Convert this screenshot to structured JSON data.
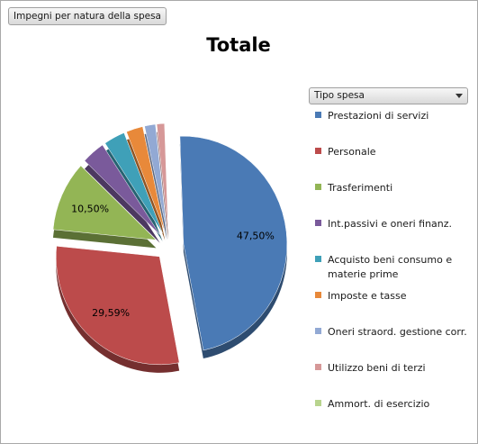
{
  "field_button": "Impegni per natura della spesa",
  "legend_dropdown": "Tipo spesa",
  "chart_data": {
    "type": "pie",
    "title": "Totale",
    "legend_position": "right",
    "slices": [
      {
        "label": "Prestazioni di servizi",
        "value": 47.5,
        "data_label": "47,50%",
        "color": "#4a7ab5"
      },
      {
        "label": "Personale",
        "value": 29.59,
        "data_label": "29,59%",
        "color": "#bc4b4b"
      },
      {
        "label": "Trasferimenti",
        "value": 10.5,
        "data_label": "10,50%",
        "color": "#93b555"
      },
      {
        "label": "Int.passivi e oneri finanz.",
        "value": 3.6,
        "data_label": "",
        "color": "#7a5a9b"
      },
      {
        "label": "Acquisto beni consumo e materie prime",
        "value": 3.3,
        "data_label": "",
        "color": "#3fa0b8"
      },
      {
        "label": "Imposte e tasse",
        "value": 2.6,
        "data_label": "",
        "color": "#e8893a"
      },
      {
        "label": "Oneri straord. gestione corr.",
        "value": 1.7,
        "data_label": "",
        "color": "#92a9d4"
      },
      {
        "label": "Utilizzo beni di terzi",
        "value": 1.2,
        "data_label": "",
        "color": "#d69898"
      },
      {
        "label": "Ammort. di esercizio",
        "value": 0.01,
        "data_label": "",
        "color": "#b8d48e"
      }
    ]
  }
}
